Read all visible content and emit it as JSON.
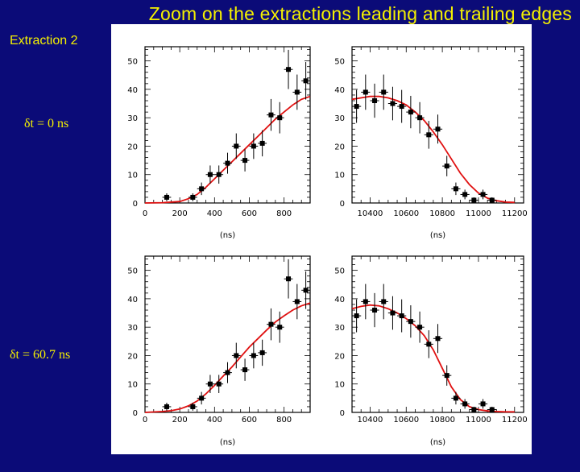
{
  "title": "Zoom on the extractions leading and trailing edges",
  "extraction_label": "Extraction 2",
  "dt_labels": [
    "δt = 0 ns",
    "δt = 60.7 ns"
  ],
  "colors": {
    "background": "#0b0b78",
    "title": "#f4f000",
    "data": "#000000",
    "fit": "#e01010"
  },
  "chart_data": [
    {
      "type": "scatter",
      "xlabel": "(ns)",
      "xlim": [
        0,
        950
      ],
      "ylim": [
        0,
        55
      ],
      "xticks": [
        0,
        200,
        400,
        600,
        800
      ],
      "yticks": [
        0,
        10,
        20,
        30,
        40,
        50
      ],
      "points": [
        {
          "x": 125,
          "y": 2,
          "e": 1.4
        },
        {
          "x": 275,
          "y": 2,
          "e": 1.4
        },
        {
          "x": 325,
          "y": 5,
          "e": 2.2
        },
        {
          "x": 375,
          "y": 10,
          "e": 3.2
        },
        {
          "x": 425,
          "y": 10,
          "e": 3.2
        },
        {
          "x": 475,
          "y": 14,
          "e": 3.7
        },
        {
          "x": 525,
          "y": 20,
          "e": 4.5
        },
        {
          "x": 575,
          "y": 15,
          "e": 3.9
        },
        {
          "x": 625,
          "y": 20,
          "e": 4.5
        },
        {
          "x": 675,
          "y": 21,
          "e": 4.6
        },
        {
          "x": 725,
          "y": 31,
          "e": 5.6
        },
        {
          "x": 775,
          "y": 30,
          "e": 5.5
        },
        {
          "x": 825,
          "y": 47,
          "e": 6.9
        },
        {
          "x": 875,
          "y": 39,
          "e": 6.2
        },
        {
          "x": 925,
          "y": 43,
          "e": 6.6
        }
      ],
      "fit": {
        "x": [
          0,
          100,
          200,
          250,
          300,
          350,
          400,
          450,
          500,
          550,
          600,
          650,
          700,
          750,
          800,
          850,
          900,
          950
        ],
        "y": [
          0,
          0.1,
          0.5,
          1.5,
          3,
          5.5,
          8.5,
          11.5,
          14.5,
          17.5,
          20.5,
          23.5,
          26.5,
          29.5,
          32,
          34.5,
          36.5,
          37.5
        ]
      }
    },
    {
      "type": "scatter",
      "xlabel": "(ns)",
      "xlim": [
        10300,
        11250
      ],
      "ylim": [
        0,
        55
      ],
      "xticks": [
        10400,
        10600,
        10800,
        11000,
        11200
      ],
      "yticks": [
        0,
        10,
        20,
        30,
        40,
        50
      ],
      "points": [
        {
          "x": 10325,
          "y": 34,
          "e": 5.8
        },
        {
          "x": 10375,
          "y": 39,
          "e": 6.2
        },
        {
          "x": 10425,
          "y": 36,
          "e": 6.0
        },
        {
          "x": 10475,
          "y": 39,
          "e": 6.2
        },
        {
          "x": 10525,
          "y": 35,
          "e": 5.9
        },
        {
          "x": 10575,
          "y": 34,
          "e": 5.8
        },
        {
          "x": 10625,
          "y": 32,
          "e": 5.7
        },
        {
          "x": 10675,
          "y": 30,
          "e": 5.5
        },
        {
          "x": 10725,
          "y": 24,
          "e": 4.9
        },
        {
          "x": 10775,
          "y": 26,
          "e": 5.1
        },
        {
          "x": 10825,
          "y": 13,
          "e": 3.6
        },
        {
          "x": 10875,
          "y": 5,
          "e": 2.2
        },
        {
          "x": 10925,
          "y": 3,
          "e": 1.7
        },
        {
          "x": 10975,
          "y": 1,
          "e": 1.0
        },
        {
          "x": 11025,
          "y": 3,
          "e": 1.7
        },
        {
          "x": 11075,
          "y": 1,
          "e": 1.0
        }
      ],
      "fit": {
        "x": [
          10300,
          10350,
          10400,
          10450,
          10500,
          10550,
          10600,
          10650,
          10700,
          10750,
          10800,
          10850,
          10900,
          10950,
          11000,
          11050,
          11100,
          11150,
          11200
        ],
        "y": [
          36.5,
          37,
          37.5,
          37.5,
          37,
          36,
          34.5,
          32,
          29,
          25,
          20.5,
          15.5,
          10.5,
          6.5,
          3.5,
          1.7,
          0.8,
          0.3,
          0.2
        ]
      }
    },
    {
      "type": "scatter",
      "xlabel": "(ns)",
      "xlim": [
        0,
        950
      ],
      "ylim": [
        0,
        55
      ],
      "xticks": [
        0,
        200,
        400,
        600,
        800
      ],
      "yticks": [
        0,
        10,
        20,
        30,
        40,
        50
      ],
      "points": [
        {
          "x": 125,
          "y": 2,
          "e": 1.4
        },
        {
          "x": 275,
          "y": 2,
          "e": 1.4
        },
        {
          "x": 325,
          "y": 5,
          "e": 2.2
        },
        {
          "x": 375,
          "y": 10,
          "e": 3.2
        },
        {
          "x": 425,
          "y": 10,
          "e": 3.2
        },
        {
          "x": 475,
          "y": 14,
          "e": 3.7
        },
        {
          "x": 525,
          "y": 20,
          "e": 4.5
        },
        {
          "x": 575,
          "y": 15,
          "e": 3.9
        },
        {
          "x": 625,
          "y": 20,
          "e": 4.5
        },
        {
          "x": 675,
          "y": 21,
          "e": 4.6
        },
        {
          "x": 725,
          "y": 31,
          "e": 5.6
        },
        {
          "x": 775,
          "y": 30,
          "e": 5.5
        },
        {
          "x": 825,
          "y": 47,
          "e": 6.9
        },
        {
          "x": 875,
          "y": 39,
          "e": 6.2
        },
        {
          "x": 925,
          "y": 43,
          "e": 6.6
        }
      ],
      "fit": {
        "x": [
          0,
          100,
          150,
          200,
          250,
          300,
          350,
          400,
          450,
          500,
          550,
          600,
          650,
          700,
          750,
          800,
          850,
          900,
          950
        ],
        "y": [
          0,
          0.3,
          0.6,
          1.2,
          2.3,
          4,
          6.5,
          9.5,
          12.8,
          16,
          19.5,
          23,
          26,
          29,
          31.8,
          34,
          36,
          37.5,
          38.5
        ]
      }
    },
    {
      "type": "scatter",
      "xlabel": "(ns)",
      "xlim": [
        10300,
        11250
      ],
      "ylim": [
        0,
        55
      ],
      "xticks": [
        10400,
        10600,
        10800,
        11000,
        11200
      ],
      "yticks": [
        0,
        10,
        20,
        30,
        40,
        50
      ],
      "points": [
        {
          "x": 10325,
          "y": 34,
          "e": 5.8
        },
        {
          "x": 10375,
          "y": 39,
          "e": 6.2
        },
        {
          "x": 10425,
          "y": 36,
          "e": 6.0
        },
        {
          "x": 10475,
          "y": 39,
          "e": 6.2
        },
        {
          "x": 10525,
          "y": 35,
          "e": 5.9
        },
        {
          "x": 10575,
          "y": 34,
          "e": 5.8
        },
        {
          "x": 10625,
          "y": 32,
          "e": 5.7
        },
        {
          "x": 10675,
          "y": 30,
          "e": 5.5
        },
        {
          "x": 10725,
          "y": 24,
          "e": 4.9
        },
        {
          "x": 10775,
          "y": 26,
          "e": 5.1
        },
        {
          "x": 10825,
          "y": 13,
          "e": 3.6
        },
        {
          "x": 10875,
          "y": 5,
          "e": 2.2
        },
        {
          "x": 10925,
          "y": 3,
          "e": 1.7
        },
        {
          "x": 10975,
          "y": 1,
          "e": 1.0
        },
        {
          "x": 11025,
          "y": 3,
          "e": 1.7
        },
        {
          "x": 11075,
          "y": 1,
          "e": 1.0
        }
      ],
      "fit": {
        "x": [
          10300,
          10350,
          10400,
          10450,
          10500,
          10550,
          10600,
          10650,
          10700,
          10750,
          10800,
          10850,
          10900,
          10950,
          11000,
          11050,
          11100,
          11150,
          11200
        ],
        "y": [
          36.5,
          37.3,
          37.8,
          37.5,
          36.5,
          35,
          33,
          30.5,
          27,
          22,
          15.5,
          9,
          4.5,
          2,
          1,
          0.5,
          0.3,
          0.2,
          0.2
        ]
      }
    }
  ]
}
